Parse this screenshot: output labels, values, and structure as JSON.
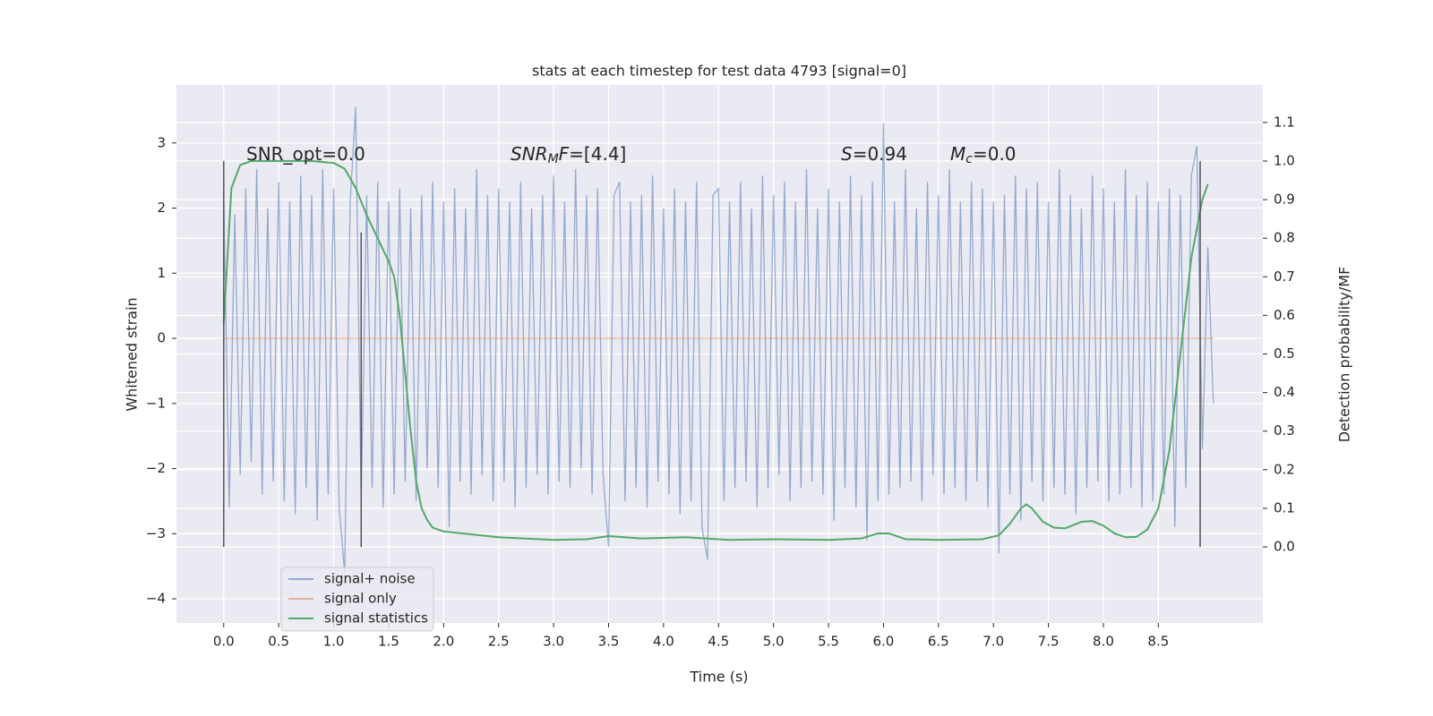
{
  "chart_data": {
    "type": "line",
    "title": "stats at each timestep for test data 4793 [signal=0]",
    "xlabel": "Time (s)",
    "ylabel": "Whitened strain",
    "y2label": "Detection probability/MF",
    "xlim": [
      -0.43,
      9.45
    ],
    "ylim": [
      -4.37,
      3.89
    ],
    "y2lim": [
      -0.197,
      1.197
    ],
    "xticks": [
      {
        "value": 0,
        "label": "0.0"
      },
      {
        "value": 0.5,
        "label": "0.5"
      },
      {
        "value": 1,
        "label": "1.0"
      },
      {
        "value": 1.5,
        "label": "1.5"
      },
      {
        "value": 2,
        "label": "2.0"
      },
      {
        "value": 2.5,
        "label": "2.5"
      },
      {
        "value": 3,
        "label": "3.0"
      },
      {
        "value": 3.5,
        "label": "3.5"
      },
      {
        "value": 4,
        "label": "4.0"
      },
      {
        "value": 4.5,
        "label": "4.5"
      },
      {
        "value": 5,
        "label": "5.0"
      },
      {
        "value": 5.5,
        "label": "5.5"
      },
      {
        "value": 6,
        "label": "6.0"
      },
      {
        "value": 6.5,
        "label": "6.5"
      },
      {
        "value": 7,
        "label": "7.0"
      },
      {
        "value": 7.5,
        "label": "7.5"
      },
      {
        "value": 8,
        "label": "8.0"
      },
      {
        "value": 8.5,
        "label": "8.5"
      }
    ],
    "yticks": [
      {
        "value": -4,
        "label": "−4"
      },
      {
        "value": -3,
        "label": "−3"
      },
      {
        "value": -2,
        "label": "−2"
      },
      {
        "value": -1,
        "label": "−1"
      },
      0,
      1,
      2,
      3
    ],
    "y2ticks": [
      {
        "value": 0,
        "label": "0.0"
      },
      {
        "value": 0.1,
        "label": "0.1"
      },
      {
        "value": 0.2,
        "label": "0.2"
      },
      {
        "value": 0.3,
        "label": "0.3"
      },
      {
        "value": 0.4,
        "label": "0.4"
      },
      {
        "value": 0.5,
        "label": "0.5"
      },
      {
        "value": 0.6,
        "label": "0.6"
      },
      {
        "value": 0.7,
        "label": "0.7"
      },
      {
        "value": 0.8,
        "label": "0.8"
      },
      {
        "value": 0.9,
        "label": "0.9"
      },
      {
        "value": 1.0,
        "label": "1.0"
      },
      {
        "value": 1.1,
        "label": "1.1"
      }
    ],
    "grid": true,
    "legend": "lower left",
    "series": [
      {
        "name": "signal+ noise",
        "color": "#4c72b0",
        "opacity": 0.55,
        "x": [
          0,
          0.05,
          0.1,
          0.15,
          0.2,
          0.25,
          0.3,
          0.35,
          0.4,
          0.45,
          0.5,
          0.55,
          0.6,
          0.65,
          0.7,
          0.75,
          0.8,
          0.85,
          0.9,
          0.95,
          1,
          1.05,
          1.1,
          1.15,
          1.2,
          1.25,
          1.3,
          1.35,
          1.4,
          1.45,
          1.5,
          1.55,
          1.6,
          1.65,
          1.7,
          1.75,
          1.8,
          1.85,
          1.9,
          1.95,
          2,
          2.05,
          2.1,
          2.15,
          2.2,
          2.25,
          2.3,
          2.35,
          2.4,
          2.45,
          2.5,
          2.55,
          2.6,
          2.65,
          2.7,
          2.75,
          2.8,
          2.85,
          2.9,
          2.95,
          3,
          3.05,
          3.1,
          3.15,
          3.2,
          3.25,
          3.3,
          3.35,
          3.4,
          3.45,
          3.5,
          3.55,
          3.6,
          3.65,
          3.7,
          3.75,
          3.8,
          3.85,
          3.9,
          3.95,
          4,
          4.05,
          4.1,
          4.15,
          4.2,
          4.25,
          4.3,
          4.35,
          4.4,
          4.45,
          4.5,
          4.55,
          4.6,
          4.65,
          4.7,
          4.75,
          4.8,
          4.85,
          4.9,
          4.95,
          5,
          5.05,
          5.1,
          5.15,
          5.2,
          5.25,
          5.3,
          5.35,
          5.4,
          5.45,
          5.5,
          5.55,
          5.6,
          5.65,
          5.7,
          5.75,
          5.8,
          5.85,
          5.9,
          5.95,
          6,
          6.05,
          6.1,
          6.15,
          6.2,
          6.25,
          6.3,
          6.35,
          6.4,
          6.45,
          6.5,
          6.55,
          6.6,
          6.65,
          6.7,
          6.75,
          6.8,
          6.85,
          6.9,
          6.95,
          7,
          7.05,
          7.1,
          7.15,
          7.2,
          7.25,
          7.3,
          7.35,
          7.4,
          7.45,
          7.5,
          7.55,
          7.6,
          7.65,
          7.7,
          7.75,
          7.8,
          7.85,
          7.9,
          7.95,
          8,
          8.05,
          8.1,
          8.15,
          8.2,
          8.25,
          8.3,
          8.35,
          8.4,
          8.45,
          8.5,
          8.55,
          8.6,
          8.65,
          8.7,
          8.75,
          8.8,
          8.85,
          8.9,
          8.95,
          9
        ],
        "values": [
          2.2,
          -2.6,
          1.9,
          -2.1,
          2.3,
          -1.9,
          2.6,
          -2.4,
          2.0,
          -2.2,
          2.4,
          -2.5,
          2.1,
          -2.7,
          2.5,
          -2.3,
          2.2,
          -2.8,
          2.6,
          -2.4,
          2.3,
          -2.6,
          -3.6,
          2.1,
          3.55,
          -2.5,
          2.2,
          -2.3,
          2.4,
          -2.6,
          2.1,
          -2.4,
          2.3,
          -2.2,
          2.0,
          -2.5,
          2.2,
          -2.0,
          2.4,
          -2.3,
          2.1,
          -2.9,
          2.3,
          -2.2,
          2.0,
          -2.4,
          2.6,
          -2.1,
          2.2,
          -2.5,
          2.3,
          -2.2,
          2.1,
          -2.6,
          2.4,
          -2.3,
          2.0,
          -2.1,
          2.2,
          -2.4,
          2.5,
          -2.2,
          2.1,
          -2.3,
          2.6,
          -2.0,
          2.2,
          -2.4,
          2.3,
          -2.1,
          -3.2,
          2.2,
          2.4,
          -2.5,
          2.1,
          -2.3,
          2.2,
          -2.6,
          2.5,
          -2.2,
          2.0,
          -2.4,
          2.3,
          -2.7,
          2.1,
          -2.5,
          2.4,
          -2.9,
          -3.4,
          2.2,
          2.3,
          -2.5,
          2.1,
          -2.3,
          2.4,
          -2.2,
          2.0,
          -2.6,
          2.5,
          -2.3,
          2.2,
          -2.1,
          2.4,
          -2.5,
          2.1,
          -2.3,
          2.6,
          -2.2,
          2.0,
          -2.4,
          2.3,
          -2.8,
          2.1,
          -2.3,
          2.5,
          -2.6,
          2.2,
          -3.1,
          2.4,
          -2.5,
          3.3,
          -2.4,
          2.1,
          -2.3,
          2.6,
          -2.2,
          2.0,
          -2.5,
          2.4,
          -2.1,
          2.2,
          -2.4,
          2.6,
          -2.3,
          2.1,
          -2.5,
          2.4,
          -2.2,
          2.3,
          -2.6,
          2.1,
          -3.3,
          2.2,
          -2.4,
          2.5,
          -2.8,
          2.3,
          -2.2,
          2.4,
          -2.5,
          2.1,
          -2.3,
          2.6,
          -2.4,
          2.2,
          -2.7,
          2.0,
          -2.3,
          2.5,
          -2.2,
          2.3,
          -2.5,
          2.1,
          -2.4,
          2.6,
          -2.3,
          2.2,
          -2.6,
          2.4,
          -2.5,
          2.1,
          -2.4,
          2.3,
          -2.9,
          2.2,
          -2.3,
          2.5,
          2.95,
          -1.7,
          1.4,
          -1.0
        ]
      },
      {
        "name": "signal only",
        "color": "#dd8452",
        "opacity": 0.55,
        "x": [
          0,
          9
        ],
        "values": [
          0,
          0
        ]
      },
      {
        "name": "signal statistics",
        "color": "#55a868",
        "opacity": 1,
        "axis": "y2",
        "x": [
          0,
          0.07,
          0.15,
          0.25,
          0.5,
          0.8,
          1,
          1.1,
          1.2,
          1.3,
          1.4,
          1.5,
          1.55,
          1.6,
          1.65,
          1.7,
          1.75,
          1.8,
          1.85,
          1.9,
          2,
          2.5,
          3,
          3.3,
          3.5,
          3.8,
          4.2,
          4.6,
          5,
          5.5,
          5.8,
          5.95,
          6.05,
          6.2,
          6.5,
          6.9,
          7.05,
          7.15,
          7.25,
          7.3,
          7.35,
          7.45,
          7.55,
          7.65,
          7.8,
          7.9,
          8,
          8.1,
          8.2,
          8.3,
          8.4,
          8.5,
          8.6,
          8.7,
          8.8,
          8.9,
          8.95
        ],
        "values": [
          0.58,
          0.93,
          0.99,
          1.0,
          1.0,
          1.0,
          0.995,
          0.98,
          0.93,
          0.86,
          0.8,
          0.74,
          0.7,
          0.6,
          0.45,
          0.3,
          0.17,
          0.1,
          0.07,
          0.05,
          0.04,
          0.025,
          0.018,
          0.02,
          0.028,
          0.022,
          0.025,
          0.018,
          0.02,
          0.018,
          0.022,
          0.035,
          0.035,
          0.02,
          0.018,
          0.02,
          0.03,
          0.06,
          0.1,
          0.11,
          0.1,
          0.065,
          0.05,
          0.048,
          0.065,
          0.067,
          0.055,
          0.035,
          0.025,
          0.026,
          0.045,
          0.1,
          0.25,
          0.5,
          0.75,
          0.9,
          0.94
        ]
      }
    ],
    "vlines": [
      {
        "x": 0,
        "ymin": 0,
        "ymax": 1,
        "axis": "y2"
      },
      {
        "x": 1.25,
        "ymin": 0,
        "ymax": 0.815,
        "axis": "y2"
      },
      {
        "x": 8.88,
        "ymin": 0,
        "ymax": 1,
        "axis": "y2"
      }
    ],
    "annotations": [
      {
        "parts": [
          {
            "text": "SNR_opt=0.0",
            "style": "normal"
          }
        ]
      },
      {
        "parts": [
          {
            "text": "SNR",
            "style": "italic"
          },
          {
            "text": "M",
            "style": "sub"
          },
          {
            "text": "F",
            "style": "italic"
          },
          {
            "text": "=[4.4]",
            "style": "normal"
          }
        ]
      },
      {
        "parts": [
          {
            "text": "S",
            "style": "italic"
          },
          {
            "text": "=0.94",
            "style": "normal"
          }
        ]
      },
      {
        "parts": [
          {
            "text": "M",
            "style": "italic"
          },
          {
            "text": "c",
            "style": "sub"
          },
          {
            "text": "=0.0",
            "style": "normal"
          }
        ]
      }
    ]
  }
}
